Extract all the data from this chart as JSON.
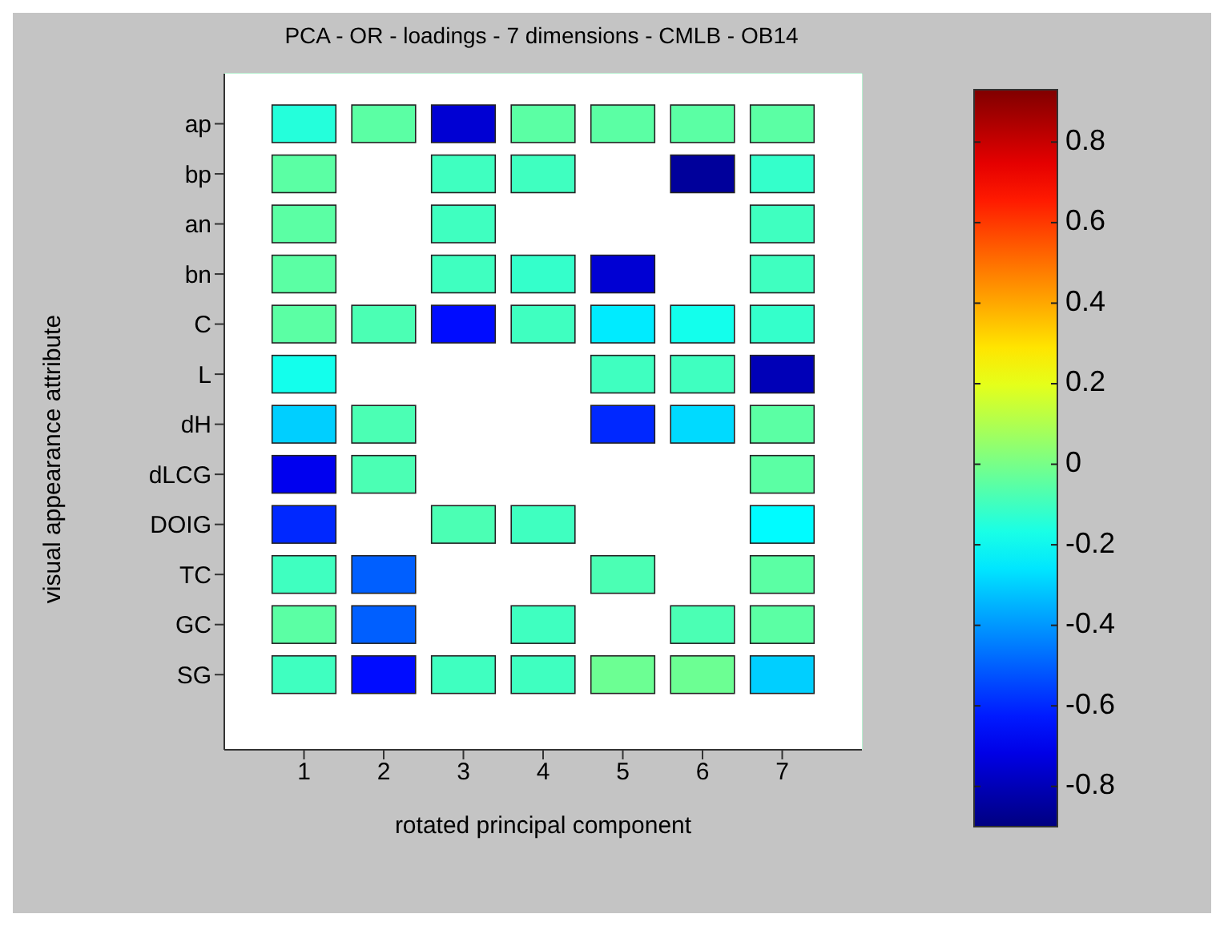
{
  "chart_data": {
    "type": "heatmap",
    "title": "PCA - OR - loadings - 7 dimensions - CMLB - OB14",
    "xlabel": "rotated principal component",
    "ylabel": "visual appearance attribute",
    "clim": [
      -0.9,
      0.93
    ],
    "cticks": [
      -0.8,
      -0.6,
      -0.4,
      -0.2,
      0,
      0.2,
      0.4,
      0.6,
      0.8
    ],
    "categories": [
      "1",
      "2",
      "3",
      "4",
      "5",
      "6",
      "7"
    ],
    "y_categories": [
      "ap",
      "bp",
      "an",
      "bn",
      "C",
      "L",
      "dH",
      "dLCG",
      "DOIG",
      "TC",
      "GC",
      "SG"
    ],
    "cells": [
      [
        -0.15,
        -0.05,
        -0.75,
        -0.05,
        -0.05,
        -0.05,
        -0.05
      ],
      [
        -0.05,
        null,
        -0.1,
        -0.1,
        null,
        -0.85,
        -0.12
      ],
      [
        -0.05,
        null,
        -0.1,
        null,
        null,
        null,
        -0.1
      ],
      [
        -0.05,
        null,
        -0.1,
        -0.12,
        -0.75,
        null,
        -0.1
      ],
      [
        -0.05,
        -0.08,
        -0.65,
        -0.1,
        -0.25,
        -0.18,
        -0.12
      ],
      [
        -0.18,
        null,
        null,
        null,
        -0.1,
        -0.1,
        -0.8
      ],
      [
        -0.3,
        -0.08,
        null,
        null,
        -0.6,
        -0.28,
        -0.05
      ],
      [
        -0.7,
        -0.08,
        null,
        null,
        null,
        null,
        -0.05
      ],
      [
        -0.6,
        null,
        -0.08,
        -0.1,
        null,
        null,
        -0.22
      ],
      [
        -0.1,
        -0.5,
        null,
        null,
        -0.08,
        null,
        -0.05
      ],
      [
        -0.05,
        -0.5,
        null,
        -0.1,
        null,
        -0.08,
        -0.05
      ],
      [
        -0.1,
        -0.65,
        -0.1,
        -0.1,
        -0.02,
        -0.02,
        -0.3
      ]
    ]
  }
}
